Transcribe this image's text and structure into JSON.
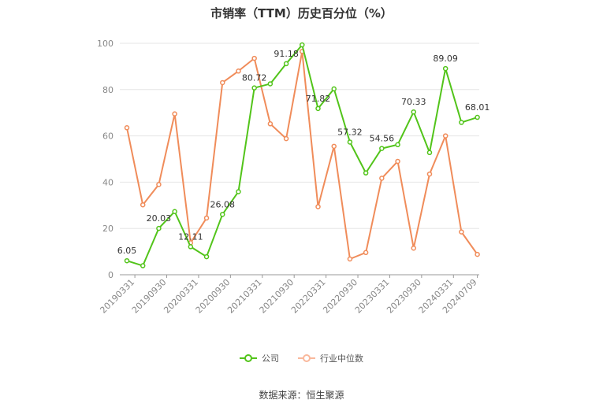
{
  "chart_data": {
    "type": "line",
    "title": "市销率（TTM）历史百分位（%）",
    "ylim": [
      0,
      100
    ],
    "yticks": [
      0,
      20,
      40,
      60,
      80,
      100
    ],
    "x_tick_labels": [
      "20190331",
      "20190930",
      "20200331",
      "20200930",
      "20210331",
      "20210930",
      "20220331",
      "20220930",
      "20230331",
      "20230930",
      "20240331",
      "20240709"
    ],
    "grid": true,
    "legend_position": "bottom",
    "series": [
      {
        "name": "公司",
        "color": "#52c41a",
        "values": [
          6.05,
          3.9,
          20.03,
          27.3,
          12.11,
          7.8,
          26.08,
          35.9,
          80.72,
          82.5,
          91.18,
          99.3,
          71.82,
          80.3,
          57.32,
          44.0,
          54.56,
          56.2,
          70.33,
          52.8,
          89.09,
          65.8,
          68.01
        ],
        "labels": {
          "0": "6.05",
          "2": "20.03",
          "4": "12.11",
          "6": "26.08",
          "8": "80.72",
          "10": "91.18",
          "12": "71.82",
          "14": "57.32",
          "16": "54.56",
          "18": "70.33",
          "20": "89.09",
          "22": "68.01"
        }
      },
      {
        "name": "行业中位数",
        "color": "#f08c5a",
        "values": [
          63.5,
          30.2,
          39.0,
          69.5,
          13.8,
          24.5,
          83.0,
          88.0,
          93.5,
          65.2,
          58.8,
          96.5,
          29.4,
          55.5,
          6.8,
          9.6,
          41.7,
          49.0,
          11.5,
          43.5,
          60.0,
          18.5,
          8.8
        ]
      }
    ]
  },
  "footer": {
    "source": "数据来源：恒生聚源"
  }
}
